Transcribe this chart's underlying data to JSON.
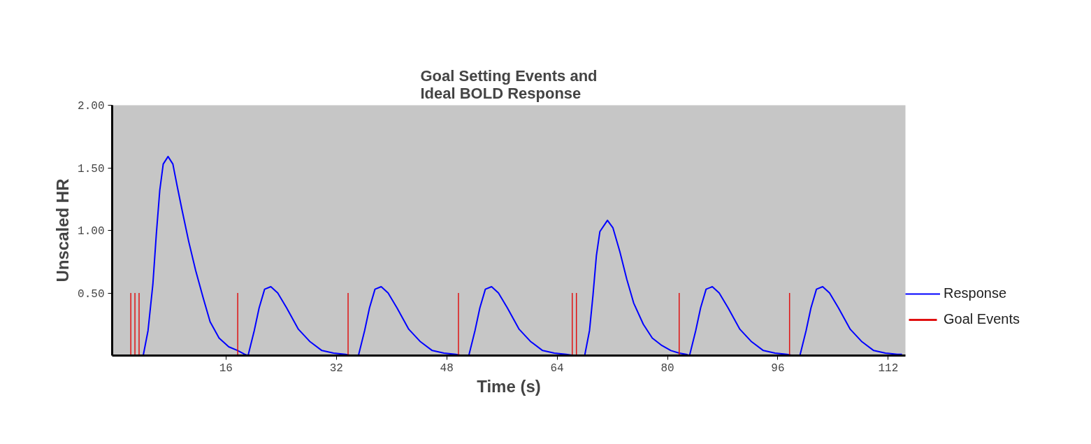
{
  "chart_data": {
    "type": "line",
    "title": "Goal Setting Events and\nIdeal BOLD Response",
    "xlabel": "Time (s)",
    "ylabel": "Unscaled HR",
    "xlim": [
      -0.5,
      114.5
    ],
    "ylim": [
      0,
      2
    ],
    "xticks": [
      16,
      32,
      48,
      64,
      80,
      96,
      112
    ],
    "yticks": [
      {
        "value": 0.5,
        "label": "0.50"
      },
      {
        "value": 1,
        "label": "1.00"
      },
      {
        "value": 1.5,
        "label": "1.50"
      },
      {
        "value": 2,
        "label": "2.00"
      }
    ],
    "grid": false,
    "legend": "right",
    "marker": "none",
    "line_style": "solid",
    "series": [
      {
        "name": "Response",
        "color": "#0000ff",
        "x": [
          4.0,
          4.7,
          5.4,
          5.9,
          6.4,
          6.9,
          7.6,
          8.3,
          8.9,
          9.6,
          10.6,
          11.6,
          12.7,
          13.7,
          15.0,
          16.4,
          17.7,
          18.7,
          19.2,
          20.1,
          20.8,
          21.6,
          22.5,
          23.5,
          24.8,
          26.5,
          28.2,
          29.9,
          31.6,
          33.3,
          34.2,
          35.2,
          36.1,
          36.8,
          37.6,
          38.5,
          39.5,
          40.8,
          42.5,
          44.2,
          45.9,
          47.6,
          49.3,
          50.2,
          51.2,
          52.1,
          52.8,
          53.6,
          54.5,
          55.5,
          56.8,
          58.5,
          60.2,
          61.9,
          63.6,
          65.3,
          66.5,
          68.0,
          68.7,
          69.2,
          69.7,
          70.2,
          71.3,
          72.1,
          73.1,
          74.1,
          75.1,
          76.5,
          77.8,
          79.2,
          80.5,
          81.7,
          82.7,
          83.2,
          84.1,
          84.8,
          85.6,
          86.5,
          87.5,
          88.8,
          90.5,
          92.2,
          93.9,
          95.6,
          97.3,
          98.2,
          99.2,
          100.1,
          100.8,
          101.6,
          102.5,
          103.5,
          104.8,
          106.5,
          108.2,
          109.9,
          111.6,
          113.3,
          114.0
        ],
        "values": [
          0,
          0.2,
          0.57,
          0.97,
          1.32,
          1.53,
          1.59,
          1.53,
          1.36,
          1.17,
          0.91,
          0.68,
          0.46,
          0.27,
          0.14,
          0.07,
          0.04,
          0.01,
          0,
          0.2,
          0.38,
          0.53,
          0.55,
          0.5,
          0.38,
          0.21,
          0.11,
          0.04,
          0.02,
          0.01,
          0,
          0,
          0.2,
          0.38,
          0.53,
          0.55,
          0.5,
          0.38,
          0.21,
          0.11,
          0.04,
          0.02,
          0.01,
          0,
          0,
          0.2,
          0.38,
          0.53,
          0.55,
          0.5,
          0.38,
          0.21,
          0.11,
          0.04,
          0.02,
          0.01,
          0,
          0,
          0.2,
          0.48,
          0.8,
          0.99,
          1.08,
          1.02,
          0.83,
          0.61,
          0.42,
          0.25,
          0.14,
          0.08,
          0.04,
          0.02,
          0.01,
          0,
          0.2,
          0.38,
          0.53,
          0.55,
          0.5,
          0.38,
          0.21,
          0.11,
          0.04,
          0.02,
          0.01,
          0,
          0,
          0.2,
          0.38,
          0.53,
          0.55,
          0.5,
          0.38,
          0.21,
          0.11,
          0.04,
          0.02,
          0.01,
          0.01
        ]
      },
      {
        "name": "Goal Events",
        "type": "bar",
        "color": "#e01010",
        "x": [
          2.2,
          2.8,
          3.4,
          17.7,
          33.7,
          49.7,
          66.2,
          66.8,
          81.7,
          97.7
        ],
        "values": [
          0.5,
          0.5,
          0.5,
          0.5,
          0.5,
          0.5,
          0.5,
          0.5,
          0.5,
          0.5
        ]
      }
    ]
  }
}
